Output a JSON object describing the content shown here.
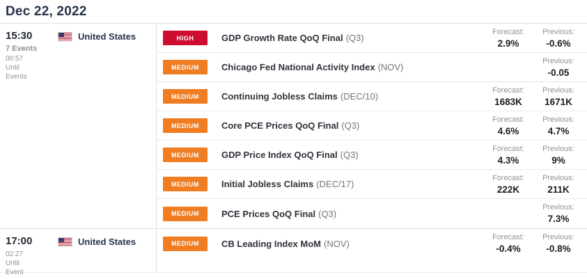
{
  "page": {
    "title": "Dec 22, 2022"
  },
  "labels": {
    "forecast": "Forecast:",
    "previous": "Previous:"
  },
  "colors": {
    "high": "#ce0e2e",
    "medium": "#f07d22"
  },
  "groups": [
    {
      "time": "15:30",
      "count_label": "7 Events",
      "countdown": "00:57",
      "until_label": "Until",
      "until_unit": "Events",
      "country": "United States",
      "flag": "us-flag",
      "events": [
        {
          "importance": "HIGH",
          "title": "GDP Growth Rate QoQ Final",
          "period": "(Q3)",
          "forecast": "2.9%",
          "previous": "-0.6%"
        },
        {
          "importance": "MEDIUM",
          "title": "Chicago Fed National Activity Index",
          "period": "(NOV)",
          "forecast": "",
          "previous": "-0.05"
        },
        {
          "importance": "MEDIUM",
          "title": "Continuing Jobless Claims",
          "period": "(DEC/10)",
          "forecast": "1683K",
          "previous": "1671K"
        },
        {
          "importance": "MEDIUM",
          "title": "Core PCE Prices QoQ Final",
          "period": "(Q3)",
          "forecast": "4.6%",
          "previous": "4.7%"
        },
        {
          "importance": "MEDIUM",
          "title": "GDP Price Index QoQ Final",
          "period": "(Q3)",
          "forecast": "4.3%",
          "previous": "9%"
        },
        {
          "importance": "MEDIUM",
          "title": "Initial Jobless Claims",
          "period": "(DEC/17)",
          "forecast": "222K",
          "previous": "211K"
        },
        {
          "importance": "MEDIUM",
          "title": "PCE Prices QoQ Final",
          "period": "(Q3)",
          "forecast": "",
          "previous": "7.3%"
        }
      ]
    },
    {
      "time": "17:00",
      "count_label": "",
      "countdown": "02:27",
      "until_label": "Until",
      "until_unit": "Event",
      "country": "United States",
      "flag": "us-flag",
      "events": [
        {
          "importance": "MEDIUM",
          "title": "CB Leading Index MoM",
          "period": "(NOV)",
          "forecast": "-0.4%",
          "previous": "-0.8%"
        }
      ]
    }
  ]
}
